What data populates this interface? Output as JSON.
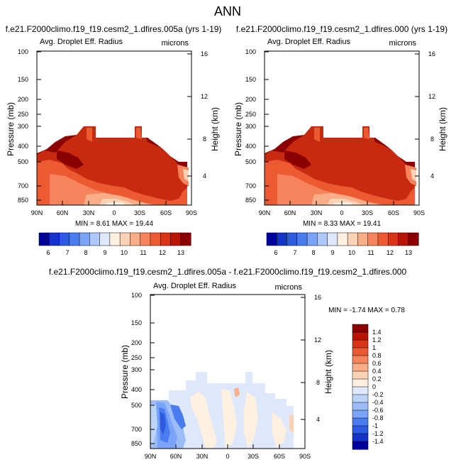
{
  "figure_title": "ANN",
  "colors": {
    "abs_levels": [
      "#00009a",
      "#1533c8",
      "#2d5ae0",
      "#4a7cf0",
      "#7aa4f8",
      "#aec8fa",
      "#dde8fb",
      "#fff0e0",
      "#fcd2b6",
      "#f9ae88",
      "#f5845c",
      "#ec5a32",
      "#d83418",
      "#b81506",
      "#8b0000"
    ],
    "diff_levels": [
      "#8b0000",
      "#b81506",
      "#d83418",
      "#ec5a32",
      "#f5845c",
      "#f9ae88",
      "#fcd2b6",
      "#fff0e0",
      "#dde8fb",
      "#bcd4fa",
      "#9cbdf7",
      "#7aa4f8",
      "#4a7cf0",
      "#2d5ae0",
      "#1533c8",
      "#00009a"
    ]
  },
  "chart_data": [
    {
      "type": "heatmap",
      "title": "f.e21.F2000climo.f19_f19.cesm2_1.dfires.005a (yrs 1-19)",
      "subtitle_left": "Avg. Droplet Eff. Radius",
      "subtitle_right": "microns",
      "ylabel": "Pressure (mb)",
      "ylabel_right": "Height (km)",
      "x_ticks": [
        "90N",
        "60N",
        "30N",
        "0",
        "30S",
        "60S",
        "90S"
      ],
      "y_ticks": [
        "100",
        "150",
        "200",
        "250",
        "300",
        "400",
        "500",
        "700",
        "850"
      ],
      "y_ticks_right": [
        "16",
        "12",
        "8",
        "4"
      ],
      "stats": "MIN =  8.61   MAX =  19.44",
      "colorbar_labels": [
        "6",
        "7",
        "8",
        "9",
        "10",
        "11",
        "12",
        "13"
      ]
    },
    {
      "type": "heatmap",
      "title": "f.e21.F2000climo.f19_f19.cesm2_1.dfires.000 (yrs 1-19)",
      "subtitle_left": "Avg. Droplet Eff. Radius",
      "subtitle_right": "microns",
      "ylabel": "Pressure (mb)",
      "ylabel_right": "Height (km)",
      "x_ticks": [
        "90N",
        "60N",
        "30N",
        "0",
        "30S",
        "60S",
        "90S"
      ],
      "y_ticks": [
        "100",
        "150",
        "200",
        "250",
        "300",
        "400",
        "500",
        "700",
        "850"
      ],
      "y_ticks_right": [
        "16",
        "12",
        "8",
        "4"
      ],
      "stats": "MIN =  8.33   MAX =  19.41",
      "colorbar_labels": [
        "6",
        "7",
        "8",
        "9",
        "10",
        "11",
        "12",
        "13"
      ]
    },
    {
      "type": "heatmap",
      "title": "f.e21.F2000climo.f19_f19.cesm2_1.dfires.005a - f.e21.F2000climo.f19_f19.cesm2_1.dfires.000",
      "subtitle_left": "Avg. Droplet Eff. Radius",
      "subtitle_right": "microns",
      "ylabel": "Pressure (mb)",
      "ylabel_right": "Height (km)",
      "x_ticks": [
        "90N",
        "60N",
        "30N",
        "0",
        "30S",
        "60S",
        "90S"
      ],
      "y_ticks": [
        "100",
        "150",
        "200",
        "250",
        "300",
        "400",
        "500",
        "700",
        "850"
      ],
      "y_ticks_right": [
        "16",
        "12",
        "8",
        "4"
      ],
      "stats": "MIN =  -1.74   MAX =   0.78",
      "colorbar_labels": [
        "1.4",
        "1.2",
        "1",
        "0.8",
        "0.6",
        "0.4",
        "0.2",
        "0",
        "-0.2",
        "-0.4",
        "-0.6",
        "-0.8",
        "-1",
        "-1.2",
        "-1.4"
      ]
    }
  ]
}
